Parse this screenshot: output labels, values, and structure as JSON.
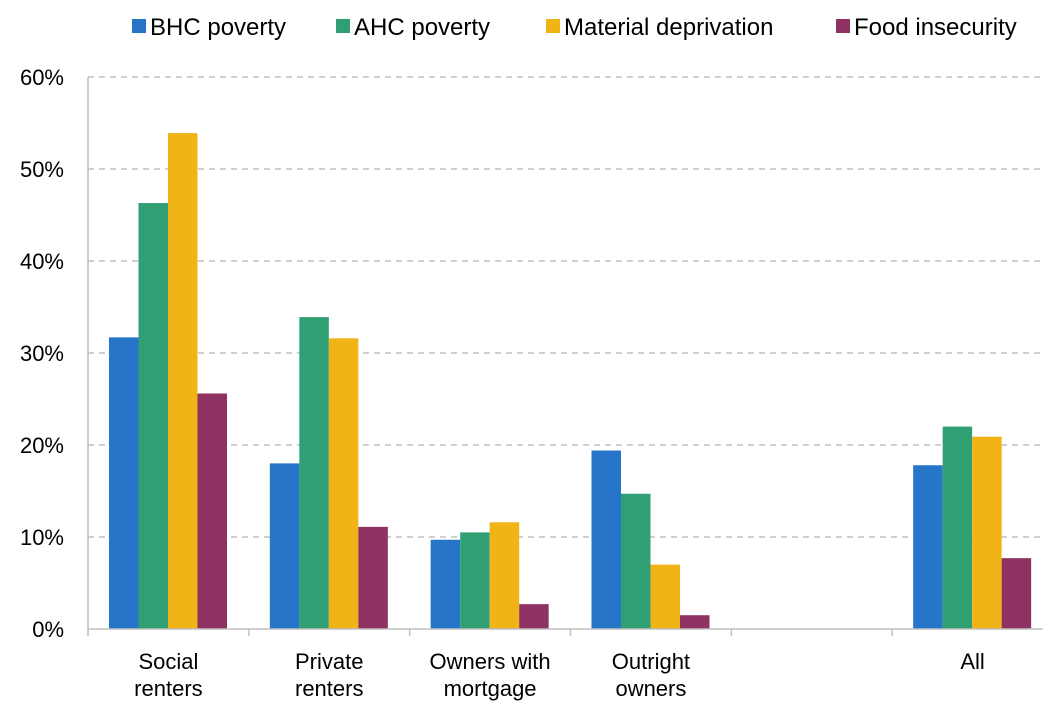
{
  "chart_data": {
    "type": "bar",
    "categories": [
      [
        "Social",
        "renters"
      ],
      [
        "Private",
        "renters"
      ],
      [
        "Owners with",
        "mortgage"
      ],
      [
        "Outright",
        "owners"
      ],
      [],
      [
        "All"
      ]
    ],
    "series": [
      {
        "name": "BHC poverty",
        "color": "#2675C9",
        "values": [
          31.7,
          18.0,
          9.7,
          19.4,
          null,
          17.8
        ]
      },
      {
        "name": "AHC poverty",
        "color": "#30A074",
        "values": [
          46.3,
          33.9,
          10.5,
          14.7,
          null,
          22.0
        ]
      },
      {
        "name": "Material deprivation",
        "color": "#F0B417",
        "values": [
          53.9,
          31.6,
          11.6,
          7.0,
          null,
          20.9
        ]
      },
      {
        "name": "Food insecurity",
        "color": "#8E3261",
        "values": [
          25.6,
          11.1,
          2.7,
          1.5,
          null,
          7.7
        ]
      }
    ],
    "y_ticks": [
      "0%",
      "10%",
      "20%",
      "30%",
      "40%",
      "50%",
      "60%"
    ],
    "ylim": [
      0,
      60
    ],
    "grid": "horizontal dashed",
    "legend_position": "top"
  }
}
